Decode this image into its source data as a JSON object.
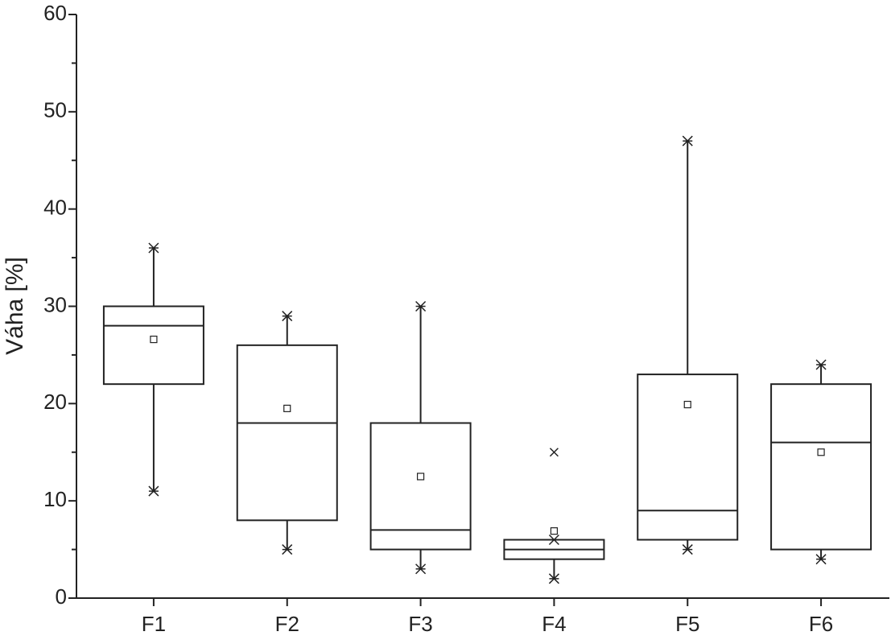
{
  "chart_data": {
    "type": "box",
    "y_label": "Váha [%]",
    "categories": [
      "F1",
      "F2",
      "F3",
      "F4",
      "F5",
      "F6"
    ],
    "min": [
      11,
      5,
      3,
      2,
      5,
      4
    ],
    "q1": [
      22,
      8,
      5,
      4,
      6,
      5
    ],
    "median": [
      28,
      18,
      7,
      5,
      9,
      16
    ],
    "q3": [
      30,
      26,
      18,
      6,
      23,
      22
    ],
    "max": [
      36,
      29,
      30,
      6,
      47,
      24
    ],
    "mean": [
      26.6,
      19.5,
      12.5,
      6.9,
      19.9,
      15
    ],
    "outliers": [
      [],
      [],
      [],
      [
        15
      ],
      [],
      []
    ],
    "color": "#222222",
    "ylim": [
      0,
      60
    ],
    "yticks": [
      0,
      10,
      20,
      30,
      40,
      50,
      60
    ],
    "yminorticks": [
      5,
      15,
      25,
      35,
      45,
      55
    ],
    "grid": false
  }
}
